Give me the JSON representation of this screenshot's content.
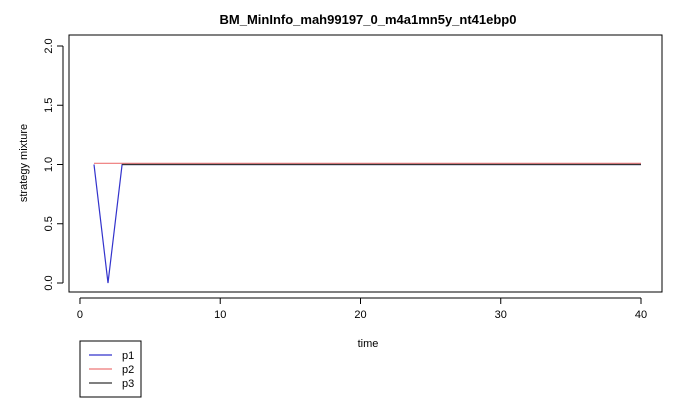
{
  "chart_data": {
    "type": "line",
    "title": "BM_MinInfo_mah99197_0_m4a1mn5y_nt41ebp0",
    "xlabel": "time",
    "ylabel": "strategy mixture",
    "xlim": [
      1,
      40
    ],
    "ylim": [
      0,
      2
    ],
    "x_ticks": [
      0,
      10,
      20,
      30,
      40
    ],
    "y_ticks": [
      0.0,
      0.5,
      1.0,
      1.5,
      2.0
    ],
    "x_tick_labels": [
      "0",
      "10",
      "20",
      "30",
      "40"
    ],
    "y_tick_labels": [
      "0.0",
      "0.5",
      "1.0",
      "1.5",
      "2.0"
    ],
    "grid": false,
    "legend_position": "bottom-left",
    "series": [
      {
        "name": "p1",
        "color": "#3333cc",
        "x": [
          1,
          2,
          3,
          40
        ],
        "y": [
          1.0,
          0.0,
          1.0,
          1.0
        ]
      },
      {
        "name": "p2",
        "color": "#ee7777",
        "x": [
          1,
          40
        ],
        "y": [
          1.01,
          1.01
        ]
      },
      {
        "name": "p3",
        "color": "#333333",
        "x": [
          3,
          40
        ],
        "y": [
          1.0,
          1.0
        ]
      }
    ]
  }
}
